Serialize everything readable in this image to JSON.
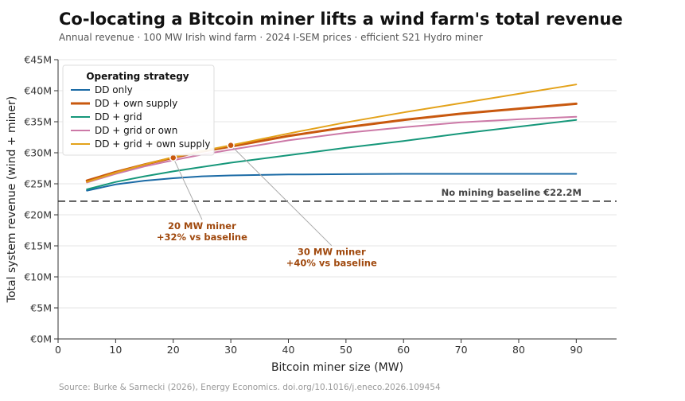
{
  "header": {
    "title": "Co-locating a Bitcoin miner lifts a wind farm's total revenue",
    "subtitle": "Annual revenue  ·  100 MW Irish wind farm  ·  2024 I-SEM prices  ·  efficient S21 Hydro miner"
  },
  "source": "Source: Burke & Sarnecki (2026), Energy Economics.  doi.org/10.1016/j.eneco.2026.109454",
  "chart_data": {
    "type": "line",
    "xlabel": "Bitcoin miner size (MW)",
    "ylabel": "Total system revenue (wind + miner)",
    "xlim": [
      0,
      97
    ],
    "ylim": [
      0,
      45
    ],
    "x_ticks": [
      0,
      10,
      20,
      30,
      40,
      50,
      60,
      70,
      80,
      90
    ],
    "x_tick_labels": [
      "0",
      "10",
      "20",
      "30",
      "40",
      "50",
      "60",
      "70",
      "80",
      "90"
    ],
    "y_ticks": [
      0,
      5,
      10,
      15,
      20,
      25,
      30,
      35,
      40,
      45
    ],
    "y_tick_labels": [
      "€0M",
      "€5M",
      "€10M",
      "€15M",
      "€20M",
      "€25M",
      "€30M",
      "€35M",
      "€40M",
      "€45M"
    ],
    "grid": "horizontal",
    "legend": {
      "title": "Operating strategy",
      "placement": "top-left"
    },
    "x": [
      5,
      10,
      15,
      20,
      25,
      30,
      40,
      50,
      60,
      70,
      80,
      90
    ],
    "series": [
      {
        "name": "DD only",
        "color": "#1a6aa5",
        "bold": false,
        "values": [
          23.9,
          24.9,
          25.5,
          25.9,
          26.2,
          26.35,
          26.5,
          26.55,
          26.6,
          26.6,
          26.6,
          26.6
        ]
      },
      {
        "name": "DD + own supply",
        "color": "#c8580e",
        "bold": true,
        "values": [
          25.5,
          26.9,
          28.1,
          29.2,
          30.2,
          31.0,
          32.7,
          34.1,
          35.3,
          36.3,
          37.1,
          37.9
        ]
      },
      {
        "name": "DD + grid",
        "color": "#16977a",
        "bold": false,
        "values": [
          24.1,
          25.3,
          26.2,
          27.0,
          27.7,
          28.4,
          29.6,
          30.8,
          31.9,
          33.1,
          34.2,
          35.3
        ]
      },
      {
        "name": "DD + grid or own",
        "color": "#cc79a7",
        "bold": false,
        "values": [
          25.2,
          26.6,
          27.8,
          28.8,
          29.7,
          30.5,
          32.0,
          33.2,
          34.1,
          34.9,
          35.4,
          35.8
        ]
      },
      {
        "name": "DD + grid + own supply",
        "color": "#e3a21a",
        "bold": false,
        "values": [
          25.3,
          26.8,
          28.1,
          29.3,
          30.3,
          31.2,
          33.1,
          34.9,
          36.5,
          38.0,
          39.5,
          41.0
        ]
      }
    ],
    "baseline": {
      "value": 22.2,
      "label": "No mining baseline  €22.2M"
    },
    "annotations": [
      {
        "x": 20,
        "y": 29.2,
        "lines": [
          "20 MW miner",
          "+32% vs baseline"
        ],
        "text_x": 25,
        "text_y": 17.7
      },
      {
        "x": 30,
        "y": 31.2,
        "lines": [
          "30 MW miner",
          "+40% vs baseline"
        ],
        "text_x": 47.5,
        "text_y": 13.5
      }
    ]
  }
}
